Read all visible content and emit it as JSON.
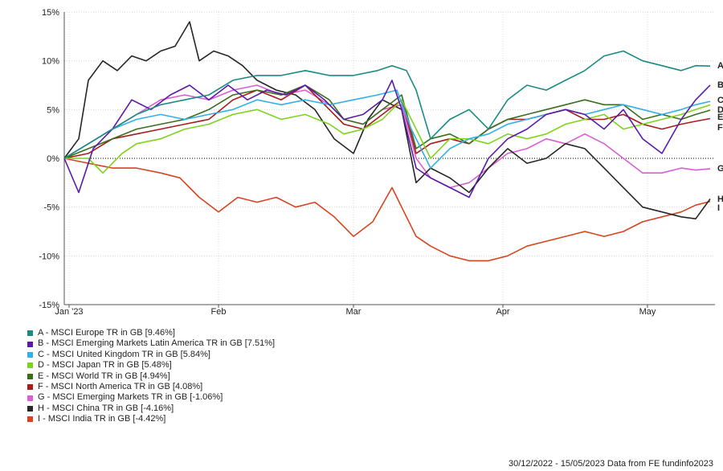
{
  "chart_data": {
    "type": "line",
    "title": "",
    "xlabel": "",
    "ylabel": "",
    "ylim": [
      -15,
      15
    ],
    "yticks": [
      -15,
      -10,
      -5,
      0,
      5,
      10,
      15
    ],
    "ytick_labels": [
      "-15%",
      "-10%",
      "-5%",
      "0%",
      "5%",
      "10%",
      "15%"
    ],
    "xlim": [
      0,
      135
    ],
    "xticks": [
      {
        "x": 1,
        "label": "Jan '23"
      },
      {
        "x": 32,
        "label": "Feb"
      },
      {
        "x": 60,
        "label": "Mar"
      },
      {
        "x": 91,
        "label": "Apr"
      },
      {
        "x": 121,
        "label": "May"
      }
    ],
    "grid": true,
    "zero_line": "dotted",
    "legend_position": "bottom-left",
    "series": [
      {
        "letter": "A",
        "name": "A - MSCI Europe TR in GB [9.46%]",
        "color": "#1a8a85",
        "points": [
          [
            0,
            0
          ],
          [
            5,
            1.5
          ],
          [
            10,
            3
          ],
          [
            15,
            4.5
          ],
          [
            20,
            5.5
          ],
          [
            25,
            6
          ],
          [
            30,
            6.5
          ],
          [
            35,
            8
          ],
          [
            40,
            8.5
          ],
          [
            45,
            8.5
          ],
          [
            50,
            9
          ],
          [
            55,
            8.5
          ],
          [
            60,
            8.5
          ],
          [
            65,
            9
          ],
          [
            68,
            9.5
          ],
          [
            71,
            9
          ],
          [
            73,
            7
          ],
          [
            76,
            2
          ],
          [
            80,
            4
          ],
          [
            84,
            5
          ],
          [
            88,
            3
          ],
          [
            92,
            6
          ],
          [
            96,
            7.5
          ],
          [
            100,
            7
          ],
          [
            104,
            8
          ],
          [
            108,
            9
          ],
          [
            112,
            10.5
          ],
          [
            116,
            11
          ],
          [
            120,
            10
          ],
          [
            124,
            9.5
          ],
          [
            128,
            9
          ],
          [
            131,
            9.5
          ],
          [
            134,
            9.46
          ]
        ]
      },
      {
        "letter": "B",
        "name": "B - MSCI Emerging Markets Latin America TR in GB [7.51%]",
        "color": "#5b1aa8",
        "points": [
          [
            0,
            0
          ],
          [
            3,
            -3.5
          ],
          [
            6,
            1
          ],
          [
            10,
            3
          ],
          [
            14,
            6
          ],
          [
            18,
            5
          ],
          [
            22,
            6.5
          ],
          [
            26,
            7.5
          ],
          [
            30,
            6
          ],
          [
            34,
            7.5
          ],
          [
            38,
            6
          ],
          [
            42,
            7
          ],
          [
            46,
            6.5
          ],
          [
            50,
            7.5
          ],
          [
            54,
            6
          ],
          [
            58,
            4
          ],
          [
            62,
            4.5
          ],
          [
            66,
            6
          ],
          [
            68,
            8
          ],
          [
            70,
            5
          ],
          [
            73,
            -1
          ],
          [
            76,
            -2
          ],
          [
            80,
            -3
          ],
          [
            84,
            -4
          ],
          [
            88,
            0
          ],
          [
            92,
            2
          ],
          [
            96,
            3
          ],
          [
            100,
            4.5
          ],
          [
            104,
            5
          ],
          [
            108,
            4.5
          ],
          [
            112,
            3
          ],
          [
            116,
            5
          ],
          [
            120,
            2
          ],
          [
            124,
            0.5
          ],
          [
            128,
            4
          ],
          [
            131,
            6
          ],
          [
            134,
            7.51
          ]
        ]
      },
      {
        "letter": "C",
        "name": "C - MSCI United Kingdom TR in GB [5.84%]",
        "color": "#33b0e8",
        "points": [
          [
            0,
            0
          ],
          [
            5,
            1.5
          ],
          [
            10,
            3
          ],
          [
            15,
            4
          ],
          [
            20,
            4.5
          ],
          [
            25,
            4
          ],
          [
            30,
            4.5
          ],
          [
            35,
            5
          ],
          [
            40,
            6
          ],
          [
            45,
            5.5
          ],
          [
            50,
            6
          ],
          [
            55,
            5.5
          ],
          [
            60,
            6
          ],
          [
            65,
            6.5
          ],
          [
            69,
            7
          ],
          [
            72,
            3
          ],
          [
            76,
            -1
          ],
          [
            80,
            1
          ],
          [
            84,
            2
          ],
          [
            88,
            2.5
          ],
          [
            92,
            3.5
          ],
          [
            96,
            4
          ],
          [
            100,
            4.5
          ],
          [
            104,
            5
          ],
          [
            108,
            4.5
          ],
          [
            112,
            5
          ],
          [
            116,
            5.5
          ],
          [
            120,
            5
          ],
          [
            124,
            4.5
          ],
          [
            128,
            5
          ],
          [
            131,
            5.5
          ],
          [
            134,
            5.84
          ]
        ]
      },
      {
        "letter": "D",
        "name": "D - MSCI Japan TR in GB [5.48%]",
        "color": "#7ed31d",
        "points": [
          [
            0,
            0
          ],
          [
            5,
            0
          ],
          [
            8,
            -1.5
          ],
          [
            12,
            0.5
          ],
          [
            15,
            1.5
          ],
          [
            20,
            2
          ],
          [
            25,
            3
          ],
          [
            30,
            3.5
          ],
          [
            35,
            4.5
          ],
          [
            40,
            5
          ],
          [
            45,
            4
          ],
          [
            50,
            4.5
          ],
          [
            55,
            3.5
          ],
          [
            58,
            2.5
          ],
          [
            62,
            3
          ],
          [
            66,
            4
          ],
          [
            70,
            6
          ],
          [
            73,
            3
          ],
          [
            76,
            0
          ],
          [
            80,
            2
          ],
          [
            84,
            2
          ],
          [
            88,
            1.5
          ],
          [
            92,
            2.5
          ],
          [
            96,
            2
          ],
          [
            100,
            2.5
          ],
          [
            104,
            3.5
          ],
          [
            108,
            4
          ],
          [
            112,
            4.5
          ],
          [
            116,
            3
          ],
          [
            120,
            3.5
          ],
          [
            124,
            4
          ],
          [
            128,
            4.5
          ],
          [
            131,
            5
          ],
          [
            134,
            5.48
          ]
        ]
      },
      {
        "letter": "E",
        "name": "E - MSCI World TR in GB [4.94%]",
        "color": "#3a6e1d",
        "points": [
          [
            0,
            0
          ],
          [
            5,
            1
          ],
          [
            10,
            2
          ],
          [
            15,
            3
          ],
          [
            20,
            3.5
          ],
          [
            25,
            4
          ],
          [
            30,
            5
          ],
          [
            35,
            6.5
          ],
          [
            40,
            7
          ],
          [
            45,
            6.5
          ],
          [
            50,
            7.5
          ],
          [
            55,
            6
          ],
          [
            58,
            4
          ],
          [
            62,
            3.5
          ],
          [
            66,
            5
          ],
          [
            70,
            6.5
          ],
          [
            73,
            1
          ],
          [
            76,
            2
          ],
          [
            80,
            2.5
          ],
          [
            84,
            1.5
          ],
          [
            88,
            3
          ],
          [
            92,
            4
          ],
          [
            96,
            4.5
          ],
          [
            100,
            5
          ],
          [
            104,
            5.5
          ],
          [
            108,
            6
          ],
          [
            112,
            5.5
          ],
          [
            116,
            5.5
          ],
          [
            120,
            4
          ],
          [
            124,
            4.5
          ],
          [
            128,
            4
          ],
          [
            131,
            4.5
          ],
          [
            134,
            4.94
          ]
        ]
      },
      {
        "letter": "F",
        "name": "F - MSCI North America TR in GB [4.08%]",
        "color": "#a81c1c",
        "points": [
          [
            0,
            0
          ],
          [
            5,
            0.5
          ],
          [
            10,
            2
          ],
          [
            15,
            2.5
          ],
          [
            20,
            3
          ],
          [
            25,
            3.5
          ],
          [
            30,
            4
          ],
          [
            35,
            6
          ],
          [
            40,
            7
          ],
          [
            45,
            6
          ],
          [
            50,
            7.5
          ],
          [
            55,
            5
          ],
          [
            58,
            3.5
          ],
          [
            62,
            3
          ],
          [
            66,
            4.5
          ],
          [
            70,
            6
          ],
          [
            73,
            0.5
          ],
          [
            76,
            1.5
          ],
          [
            80,
            2
          ],
          [
            84,
            1.5
          ],
          [
            88,
            3
          ],
          [
            92,
            4
          ],
          [
            96,
            4
          ],
          [
            100,
            4.5
          ],
          [
            104,
            5
          ],
          [
            108,
            4
          ],
          [
            112,
            4
          ],
          [
            116,
            4.5
          ],
          [
            120,
            3.5
          ],
          [
            124,
            3
          ],
          [
            128,
            3.5
          ],
          [
            131,
            3.8
          ],
          [
            134,
            4.08
          ]
        ]
      },
      {
        "letter": "G",
        "name": "G - MSCI Emerging Markets TR in GB [-1.06%]",
        "color": "#d95fd3",
        "points": [
          [
            0,
            0
          ],
          [
            5,
            1.5
          ],
          [
            10,
            3
          ],
          [
            15,
            4.5
          ],
          [
            20,
            6
          ],
          [
            25,
            6.5
          ],
          [
            30,
            6
          ],
          [
            35,
            7
          ],
          [
            40,
            7.5
          ],
          [
            45,
            6.5
          ],
          [
            50,
            7
          ],
          [
            55,
            5.5
          ],
          [
            58,
            4
          ],
          [
            62,
            3.5
          ],
          [
            66,
            5
          ],
          [
            70,
            5.5
          ],
          [
            73,
            0
          ],
          [
            76,
            -2
          ],
          [
            80,
            -3
          ],
          [
            84,
            -2.5
          ],
          [
            88,
            -1
          ],
          [
            92,
            0.5
          ],
          [
            96,
            1
          ],
          [
            100,
            2
          ],
          [
            104,
            1.5
          ],
          [
            108,
            2.5
          ],
          [
            112,
            1.5
          ],
          [
            116,
            0
          ],
          [
            120,
            -1.5
          ],
          [
            124,
            -1.5
          ],
          [
            128,
            -1
          ],
          [
            131,
            -1.2
          ],
          [
            134,
            -1.06
          ]
        ]
      },
      {
        "letter": "H",
        "name": "H - MSCI China TR in GB [-4.16%]",
        "color": "#262626",
        "points": [
          [
            0,
            0
          ],
          [
            3,
            2
          ],
          [
            5,
            8
          ],
          [
            8,
            10
          ],
          [
            11,
            9
          ],
          [
            14,
            10.5
          ],
          [
            17,
            10
          ],
          [
            20,
            11
          ],
          [
            23,
            11.5
          ],
          [
            26,
            14
          ],
          [
            28,
            10
          ],
          [
            31,
            11
          ],
          [
            34,
            10.5
          ],
          [
            37,
            9.5
          ],
          [
            40,
            8
          ],
          [
            44,
            7
          ],
          [
            48,
            6.5
          ],
          [
            52,
            5
          ],
          [
            56,
            2
          ],
          [
            60,
            0.5
          ],
          [
            63,
            4
          ],
          [
            66,
            6
          ],
          [
            70,
            5
          ],
          [
            73,
            -2.5
          ],
          [
            76,
            -1
          ],
          [
            80,
            -2
          ],
          [
            84,
            -3.5
          ],
          [
            88,
            -1
          ],
          [
            92,
            1
          ],
          [
            96,
            -0.5
          ],
          [
            100,
            0
          ],
          [
            104,
            1.5
          ],
          [
            108,
            1
          ],
          [
            112,
            -1
          ],
          [
            116,
            -3
          ],
          [
            120,
            -5
          ],
          [
            124,
            -5.5
          ],
          [
            128,
            -6
          ],
          [
            131,
            -6.2
          ],
          [
            134,
            -4.16
          ]
        ]
      },
      {
        "letter": "I",
        "name": "I - MSCI India TR in GB [-4.42%]",
        "color": "#d8441f",
        "points": [
          [
            0,
            0
          ],
          [
            5,
            -0.5
          ],
          [
            10,
            -1
          ],
          [
            15,
            -1
          ],
          [
            20,
            -1.5
          ],
          [
            24,
            -2
          ],
          [
            28,
            -4
          ],
          [
            32,
            -5.5
          ],
          [
            36,
            -4
          ],
          [
            40,
            -4.5
          ],
          [
            44,
            -4
          ],
          [
            48,
            -5
          ],
          [
            52,
            -4.5
          ],
          [
            56,
            -6
          ],
          [
            60,
            -8
          ],
          [
            64,
            -6.5
          ],
          [
            68,
            -3
          ],
          [
            70,
            -5
          ],
          [
            73,
            -8
          ],
          [
            76,
            -9
          ],
          [
            80,
            -10
          ],
          [
            84,
            -10.5
          ],
          [
            88,
            -10.5
          ],
          [
            92,
            -10
          ],
          [
            96,
            -9
          ],
          [
            100,
            -8.5
          ],
          [
            104,
            -8
          ],
          [
            108,
            -7.5
          ],
          [
            112,
            -8
          ],
          [
            116,
            -7.5
          ],
          [
            120,
            -6.5
          ],
          [
            124,
            -6
          ],
          [
            128,
            -5.5
          ],
          [
            131,
            -4.8
          ],
          [
            134,
            -4.42
          ]
        ]
      }
    ]
  },
  "footer": "30/12/2022 - 15/05/2023 Data from FE fundinfo2023"
}
